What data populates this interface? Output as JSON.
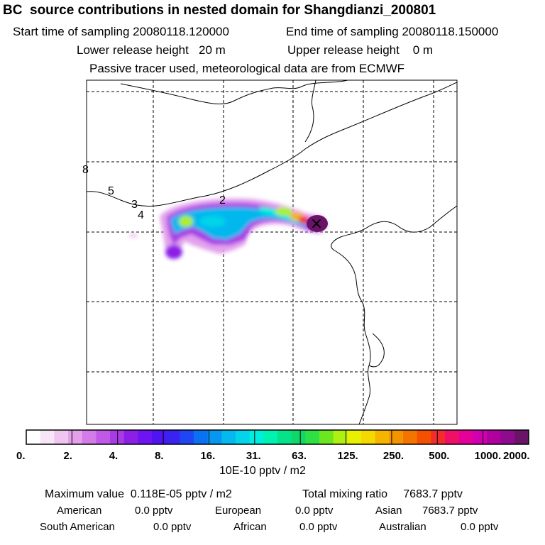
{
  "header": {
    "title": "BC  source contributions in nested domain for Shangdianzi_200801",
    "start_label": "Start time of sampling 20080118.120000",
    "end_label": "End time of sampling 20080118.150000",
    "lower_release": "Lower release height   20 m",
    "upper_release": "Upper release height    0 m",
    "note": "Passive tracer used, meteorological data are from ECMWF"
  },
  "map": {
    "track_labels": [
      "8",
      "5",
      "3",
      "4",
      "2"
    ],
    "receptor_marker": "×"
  },
  "legend": {
    "ticks": [
      "0.",
      "2.",
      "4.",
      "8.",
      "16.",
      "31.",
      "63.",
      "125.",
      "250.",
      "500.",
      "1000.",
      "2000."
    ],
    "unit": "10E-10 pptv / m2",
    "colors": [
      "#ffffff",
      "#f7e6f7",
      "#efc6f0",
      "#e3a1ec",
      "#d37be8",
      "#c05ae6",
      "#a93be6",
      "#8c1fe6",
      "#6e14f2",
      "#4f14f4",
      "#3a22f0",
      "#1f46f2",
      "#0a72f2",
      "#0896f0",
      "#05b8ee",
      "#04d4ea",
      "#00eedd",
      "#00f2b0",
      "#04e38a",
      "#10d868",
      "#2fe044",
      "#6ce61f",
      "#aef012",
      "#e6f000",
      "#f4d800",
      "#f4b400",
      "#f49500",
      "#f47400",
      "#f45000",
      "#f42c2c",
      "#ee1066",
      "#e6009a",
      "#d000b0",
      "#b0009e",
      "#8e0a8e",
      "#6a1468"
    ]
  },
  "stats": {
    "max_value": "Maximum value  0.118E-05 pptv / m2",
    "total": "Total mixing ratio     7683.7 pptv",
    "american_label": "American",
    "american_val": "0.0 pptv",
    "european_label": "European",
    "european_val": "0.0 pptv",
    "asian_label": "Asian",
    "asian_val": "7683.7 pptv",
    "south_american_label": "South American",
    "south_american_val": "0.0 pptv",
    "african_label": "African",
    "african_val": "0.0 pptv",
    "australian_label": "Australian",
    "australian_val": "0.0 pptv"
  }
}
